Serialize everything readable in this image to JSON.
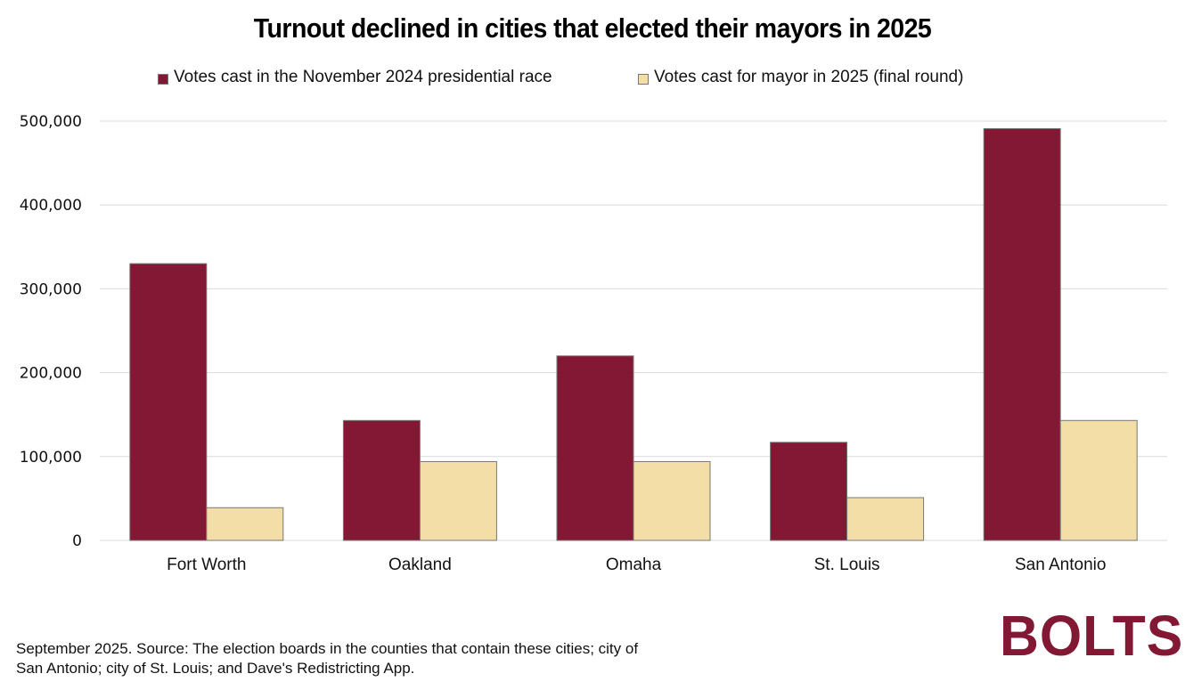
{
  "chart_data": {
    "type": "bar",
    "title": "Turnout declined in cities that elected their mayors in 2025",
    "categories": [
      "Fort Worth",
      "Oakland",
      "Omaha",
      "St. Louis",
      "San Antonio"
    ],
    "series": [
      {
        "name": "Votes cast in the November 2024 presidential race",
        "color": "#821834",
        "values": [
          330000,
          143000,
          220000,
          117000,
          491000
        ]
      },
      {
        "name": "Votes cast for mayor in 2025 (final round)",
        "color": "#F2DEA6",
        "values": [
          39000,
          94000,
          94000,
          51000,
          143000
        ]
      }
    ],
    "xlabel": "",
    "ylabel": "",
    "ylim": [
      0,
      500000
    ],
    "yticks": [
      0,
      100000,
      200000,
      300000,
      400000,
      500000
    ],
    "ytick_labels": [
      "0",
      "100,000",
      "200,000",
      "300,000",
      "400,000",
      "500,000"
    ],
    "grid": true,
    "legend_position": "top-center"
  },
  "footnote": "September 2025. Source: The election boards in the counties that contain these cities; city of San Antonio; city of St. Louis; and Dave's Redistricting App.",
  "logo": {
    "text": "BOLTS",
    "color": "#821834"
  },
  "colors": {
    "grid": "#d9d9d9",
    "bar_border": "#777777"
  }
}
